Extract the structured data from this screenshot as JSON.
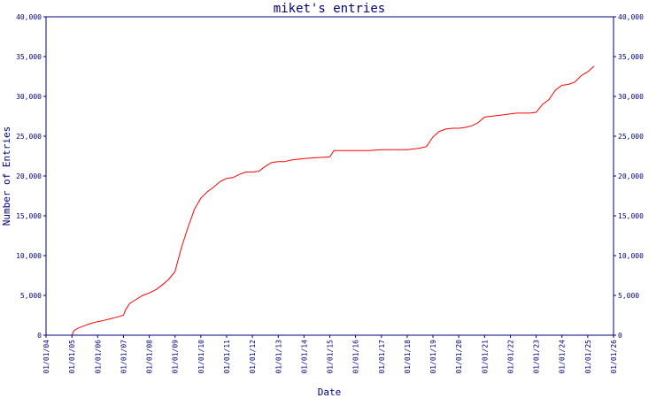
{
  "chart_data": {
    "type": "line",
    "title": "miket's entries",
    "xlabel": "Date",
    "ylabel": "Number of Entries",
    "x_tick_labels": [
      "01/01/04",
      "01/01/05",
      "01/01/06",
      "01/01/07",
      "01/01/08",
      "01/01/09",
      "01/01/10",
      "01/01/11",
      "01/01/12",
      "01/01/13",
      "01/01/14",
      "01/01/15",
      "01/01/16",
      "01/01/17",
      "01/01/18",
      "01/01/19",
      "01/01/20",
      "01/01/21",
      "01/01/22",
      "01/01/23",
      "01/01/24",
      "01/01/25",
      "01/01/26"
    ],
    "y_ticks": [
      0,
      5000,
      10000,
      15000,
      20000,
      25000,
      30000,
      35000,
      40000
    ],
    "y_tick_labels": [
      "0",
      "5,000",
      "10,000",
      "15,000",
      "20,000",
      "25,000",
      "30,000",
      "35,000",
      "40,000"
    ],
    "xlim": [
      "2004-01-01",
      "2026-01-01"
    ],
    "ylim": [
      0,
      40000
    ],
    "right_axis": true,
    "grid": false,
    "colors": {
      "axis": "#000080",
      "series": "#ff0000",
      "text": "#000080"
    },
    "series": [
      {
        "x": [
          "2005-01-01",
          "2005-02-01",
          "2005-04-01",
          "2005-07-01",
          "2005-10-01",
          "2006-01-01",
          "2006-03-01",
          "2006-06-01",
          "2006-09-01",
          "2007-01-01",
          "2007-02-01",
          "2007-04-01",
          "2007-07-01",
          "2007-10-01",
          "2008-01-01",
          "2008-04-01",
          "2008-07-01",
          "2008-10-01",
          "2009-01-01",
          "2009-04-01",
          "2009-07-01",
          "2009-10-01",
          "2010-01-01",
          "2010-04-01",
          "2010-07-01",
          "2010-10-01",
          "2011-01-01",
          "2011-04-01",
          "2011-07-01",
          "2011-10-01",
          "2012-01-01",
          "2012-04-01",
          "2012-07-01",
          "2012-10-01",
          "2013-01-01",
          "2013-04-01",
          "2013-07-01",
          "2013-10-01",
          "2014-01-01",
          "2014-07-01",
          "2015-01-01",
          "2015-03-01",
          "2015-07-01",
          "2016-01-01",
          "2016-07-01",
          "2017-01-01",
          "2017-07-01",
          "2018-01-01",
          "2018-07-01",
          "2018-10-01",
          "2019-01-01",
          "2019-04-01",
          "2019-07-01",
          "2019-10-01",
          "2020-01-01",
          "2020-04-01",
          "2020-07-01",
          "2020-10-01",
          "2021-01-01",
          "2021-04-01",
          "2021-07-01",
          "2021-10-01",
          "2022-01-01",
          "2022-04-01",
          "2022-07-01",
          "2022-10-01",
          "2023-01-01",
          "2023-04-01",
          "2023-07-01",
          "2023-10-01",
          "2024-01-01",
          "2024-04-01",
          "2024-07-01",
          "2024-10-01",
          "2025-01-01",
          "2025-04-01"
        ],
        "y": [
          0,
          600,
          900,
          1200,
          1500,
          1700,
          1800,
          2000,
          2200,
          2500,
          3200,
          4000,
          4500,
          5000,
          5300,
          5700,
          6300,
          7000,
          8000,
          11000,
          13500,
          15800,
          17200,
          18000,
          18600,
          19300,
          19700,
          19800,
          20200,
          20500,
          20500,
          20600,
          21200,
          21700,
          21800,
          21800,
          22000,
          22100,
          22200,
          22300,
          22400,
          23200,
          23200,
          23200,
          23200,
          23300,
          23300,
          23300,
          23500,
          23700,
          24900,
          25600,
          25900,
          26000,
          26000,
          26100,
          26300,
          26700,
          27400,
          27500,
          27600,
          27700,
          27800,
          27900,
          27900,
          27900,
          28000,
          29000,
          29600,
          30800,
          31400,
          31500,
          31800,
          32600,
          33100,
          33800
        ]
      }
    ]
  }
}
